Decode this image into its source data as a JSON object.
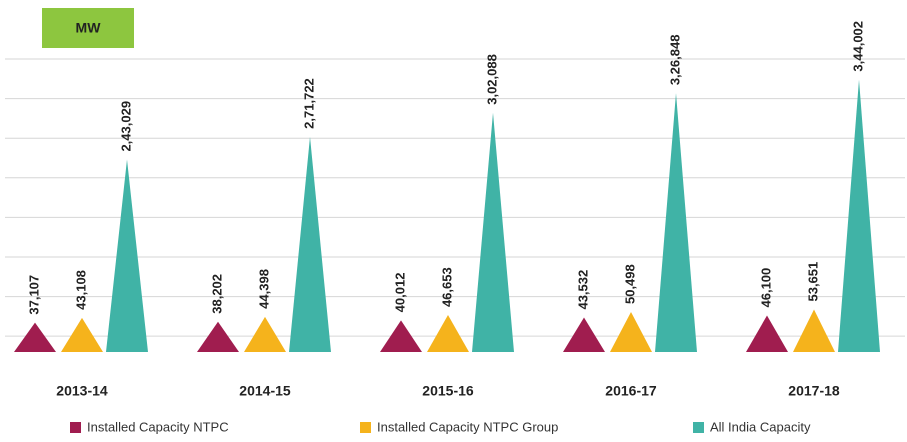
{
  "chart_data": {
    "type": "bar",
    "unit": "MW",
    "categories": [
      "2013-14",
      "2014-15",
      "2015-16",
      "2016-17",
      "2017-18"
    ],
    "series": [
      {
        "name": "Installed Capacity NTPC",
        "color": "#a01d4f",
        "values": [
          37107,
          38202,
          40012,
          43532,
          46100
        ],
        "value_labels": [
          "37,107",
          "38,202",
          "40,012",
          "43,532",
          "46,100"
        ]
      },
      {
        "name": "Installed Capacity NTPC Group",
        "color": "#f5b31c",
        "values": [
          43108,
          44398,
          46653,
          50498,
          53651
        ],
        "value_labels": [
          "43,108",
          "44,398",
          "46,653",
          "50,498",
          "53,651"
        ]
      },
      {
        "name": "All India Capacity",
        "color": "#40b3a6",
        "values": [
          243029,
          271722,
          302088,
          326848,
          344002
        ],
        "value_labels": [
          "2,43,029",
          "2,71,722",
          "3,02,088",
          "3,26,848",
          "3,44,002"
        ]
      }
    ],
    "ylim": [
      0,
      370000
    ],
    "yticks": [
      20000,
      70000,
      120000,
      170000,
      220000,
      270000,
      320000,
      370000
    ],
    "grid": true
  }
}
